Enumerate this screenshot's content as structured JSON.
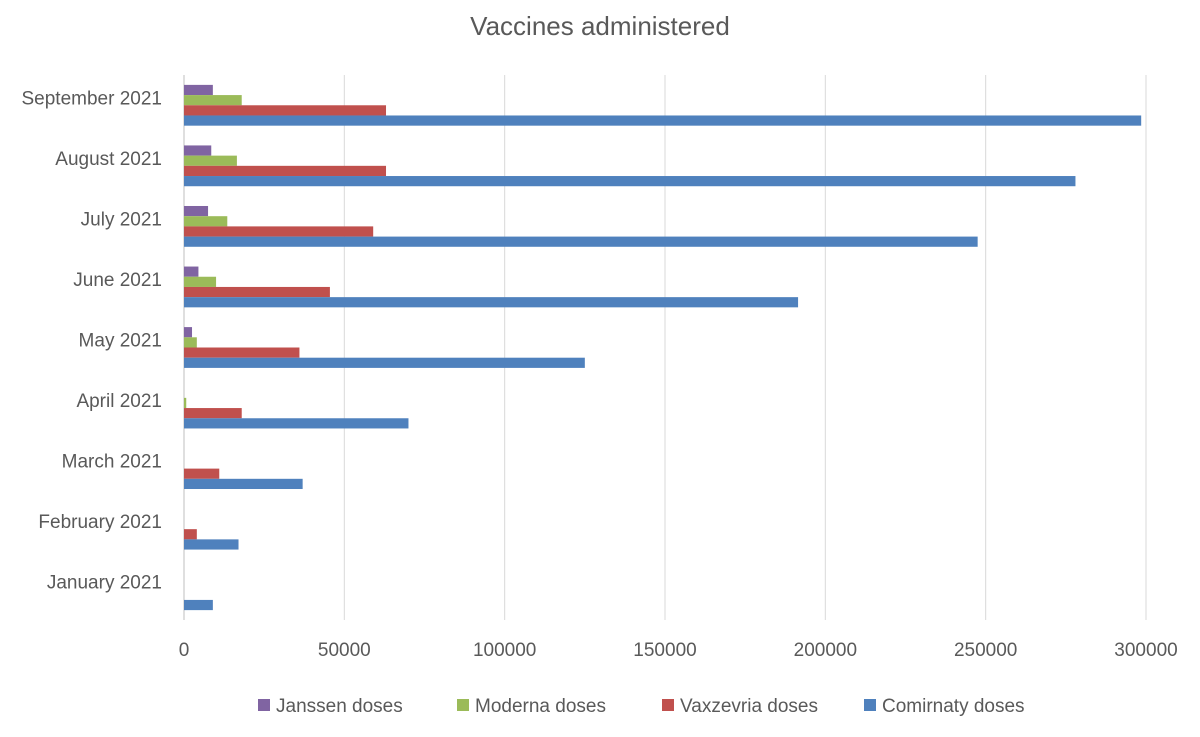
{
  "chart_data": {
    "type": "bar",
    "orientation": "horizontal",
    "title": "Vaccines administered",
    "xlabel": "",
    "ylabel": "",
    "categories": [
      "January 2021",
      "February  2021",
      "March 2021",
      "April 2021",
      "May 2021",
      "June 2021",
      "July 2021",
      "August 2021",
      "September 2021"
    ],
    "series": [
      {
        "name": "Janssen doses",
        "color": "#8064a2",
        "values": [
          0,
          0,
          0,
          0,
          2500,
          4500,
          7500,
          8500,
          9000
        ]
      },
      {
        "name": "Moderna doses",
        "color": "#9bbb59",
        "values": [
          0,
          0,
          0,
          700,
          4000,
          10000,
          13500,
          16500,
          18000
        ]
      },
      {
        "name": "Vaxzevria doses",
        "color": "#c0504d",
        "values": [
          0,
          4000,
          11000,
          18000,
          36000,
          45500,
          59000,
          63000,
          63000
        ]
      },
      {
        "name": "Comirnaty doses",
        "color": "#4f81bd",
        "values": [
          9000,
          17000,
          37000,
          70000,
          125000,
          191500,
          247500,
          278000,
          298500
        ]
      }
    ],
    "xlim": [
      0,
      300000
    ],
    "xticks": [
      "0",
      "50000",
      "100000",
      "150000",
      "200000",
      "250000",
      "300000"
    ],
    "grid": true,
    "legend_position": "bottom"
  }
}
